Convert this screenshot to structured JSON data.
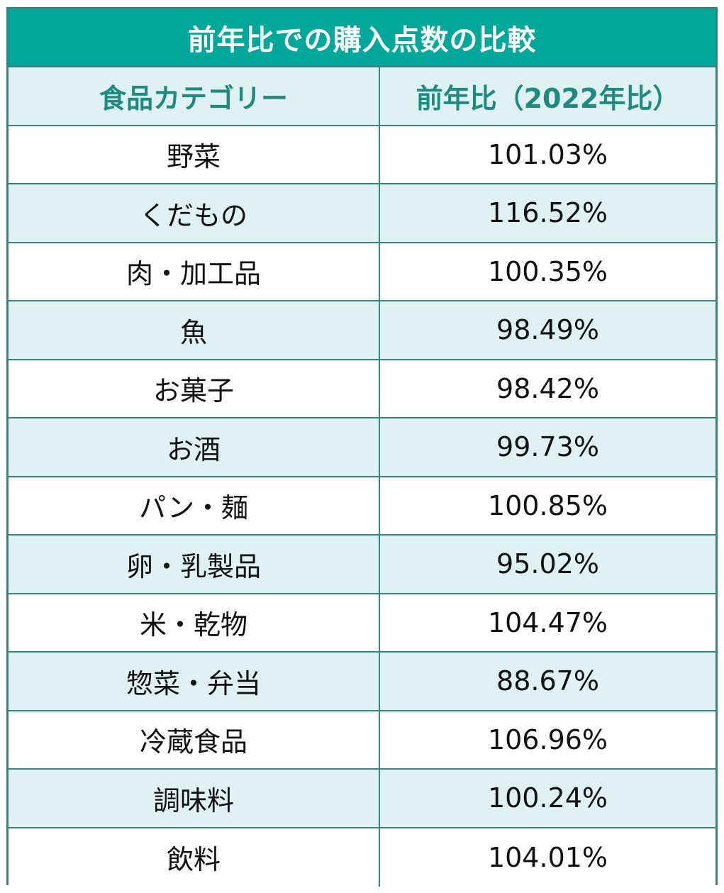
{
  "colors": {
    "title_bg": "#00a89c",
    "title_text": "#ffffff",
    "header_text": "#1f8a7e",
    "row_alt_bg": "#dff1f2",
    "row_bg": "#ffffff",
    "border": "#2e8a80"
  },
  "chart_data": {
    "type": "table",
    "title": "前年比での購入点数の比較",
    "columns": [
      "食品カテゴリー",
      "前年比（2022年比）"
    ],
    "rows": [
      {
        "category": "野菜",
        "value": "101.03%"
      },
      {
        "category": "くだもの",
        "value": "116.52%"
      },
      {
        "category": "肉・加工品",
        "value": "100.35%"
      },
      {
        "category": "魚",
        "value": "98.49%"
      },
      {
        "category": "お菓子",
        "value": "98.42%"
      },
      {
        "category": "お酒",
        "value": "99.73%"
      },
      {
        "category": "パン・麺",
        "value": "100.85%"
      },
      {
        "category": "卵・乳製品",
        "value": "95.02%"
      },
      {
        "category": "米・乾物",
        "value": "104.47%"
      },
      {
        "category": "惣菜・弁当",
        "value": "88.67%"
      },
      {
        "category": "冷蔵食品",
        "value": "106.96%"
      },
      {
        "category": "調味料",
        "value": "100.24%"
      },
      {
        "category": "飲料",
        "value": "104.01%"
      }
    ]
  }
}
